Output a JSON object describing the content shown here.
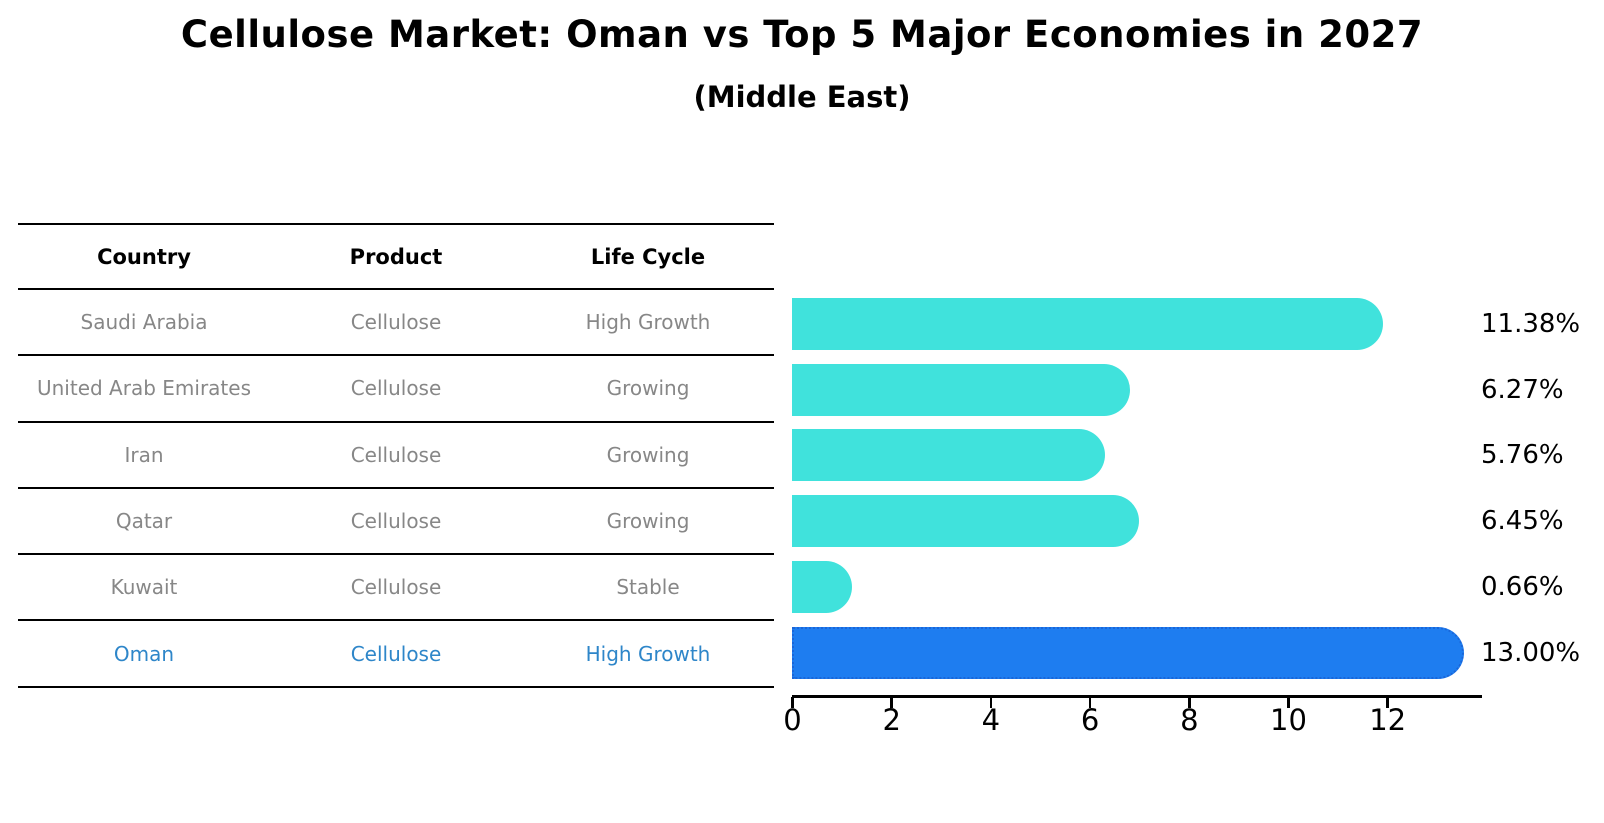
{
  "header": {
    "title": "Cellulose Market: Oman vs Top 5 Major Economies in 2027",
    "subtitle": "(Middle East)"
  },
  "table": {
    "columns": [
      "Country",
      "Product",
      "Life Cycle"
    ],
    "rows": [
      {
        "country": "Saudi Arabia",
        "product": "Cellulose",
        "life_cycle": "High Growth"
      },
      {
        "country": "United Arab Emirates",
        "product": "Cellulose",
        "life_cycle": "Growing"
      },
      {
        "country": "Iran",
        "product": "Cellulose",
        "life_cycle": "Growing"
      },
      {
        "country": "Qatar",
        "product": "Cellulose",
        "life_cycle": "Growing"
      },
      {
        "country": "Kuwait",
        "product": "Cellulose",
        "life_cycle": "Stable"
      },
      {
        "country": "Oman",
        "product": "Cellulose",
        "life_cycle": "High Growth",
        "highlight": true
      }
    ]
  },
  "chart_data": {
    "type": "bar",
    "orientation": "horizontal",
    "title": "Cellulose Market: Oman vs Top 5 Major Economies in 2027",
    "subtitle": "(Middle East)",
    "categories": [
      "Saudi Arabia",
      "United Arab Emirates",
      "Iran",
      "Qatar",
      "Kuwait",
      "Oman"
    ],
    "values": [
      11.38,
      6.27,
      5.76,
      6.45,
      0.66,
      13.0
    ],
    "value_labels": [
      "11.38%",
      "6.27%",
      "5.76%",
      "6.45%",
      "0.66%",
      "13.00%"
    ],
    "xlabel": "",
    "ylabel": "",
    "xlim": [
      0,
      13.9
    ],
    "xticks": [
      0,
      2,
      4,
      6,
      8,
      10,
      12
    ],
    "grid": false,
    "legend": false,
    "bar_color": "#40e2dc",
    "highlight_index": 5,
    "highlight_color": "#1e7df0",
    "highlight_border_color": "#1a66d9",
    "highlight_text_color": "#2e86c9",
    "axis_color": "#000000",
    "label_color": "#000000",
    "table_text_color": "#878787"
  }
}
